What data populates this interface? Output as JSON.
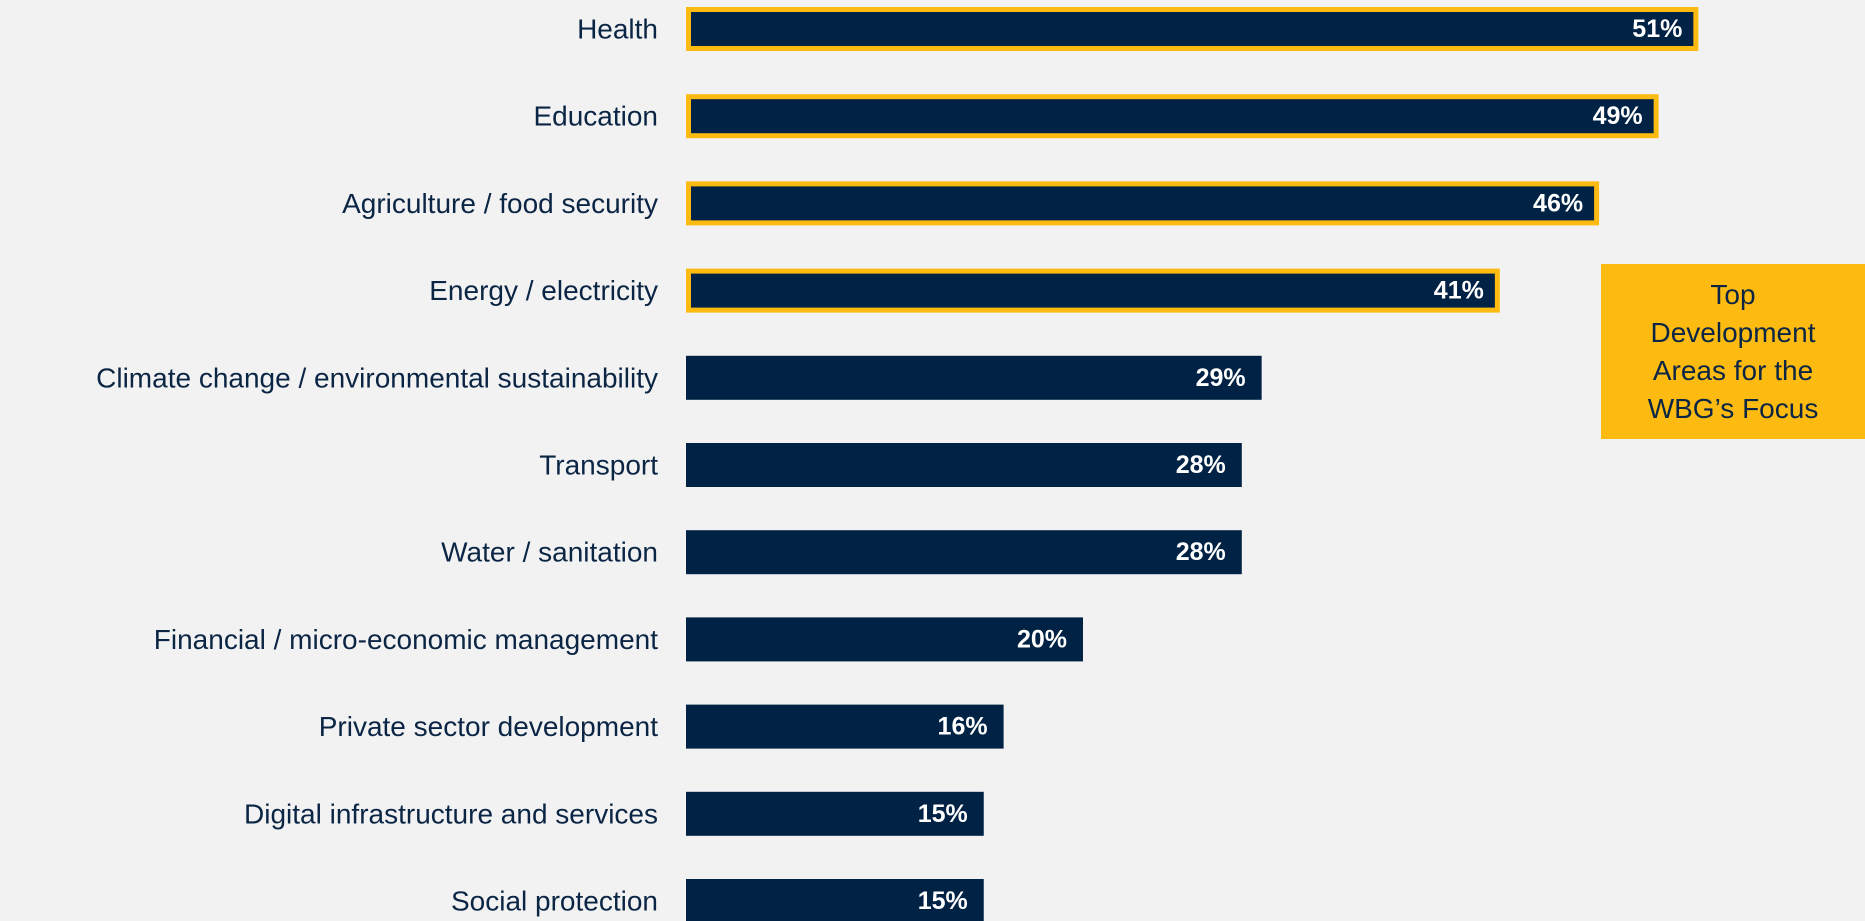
{
  "chart_data": {
    "type": "bar",
    "orientation": "horizontal",
    "categories": [
      "Health",
      "Education",
      "Agriculture / food security",
      "Energy / electricity",
      "Climate change / environmental sustainability",
      "Transport",
      "Water / sanitation",
      "Financial / micro-economic management",
      "Private sector development",
      "Digital infrastructure and services",
      "Social protection"
    ],
    "values": [
      51,
      49,
      46,
      41,
      29,
      28,
      28,
      20,
      16,
      15,
      15
    ],
    "value_labels": [
      "51%",
      "49%",
      "46%",
      "41%",
      "29%",
      "28%",
      "28%",
      "20%",
      "16%",
      "15%",
      "15%"
    ],
    "highlighted": [
      true,
      true,
      true,
      true,
      false,
      false,
      false,
      false,
      false,
      false,
      false
    ],
    "unit": "%",
    "xlim": [
      0,
      51
    ],
    "grid": false,
    "legend": "none",
    "colors": {
      "bar": "#002244",
      "highlight_border": "#fdbb11",
      "value_text": "#ffffff",
      "label_text": "#0b2545",
      "background": "#f2f2f2"
    },
    "annotation": {
      "text": "Top Development Areas for the WBG’s Focus",
      "lines": [
        "Top",
        "Development",
        "Areas for the",
        "WBG’s Focus"
      ],
      "background": "#fdbb11"
    }
  }
}
